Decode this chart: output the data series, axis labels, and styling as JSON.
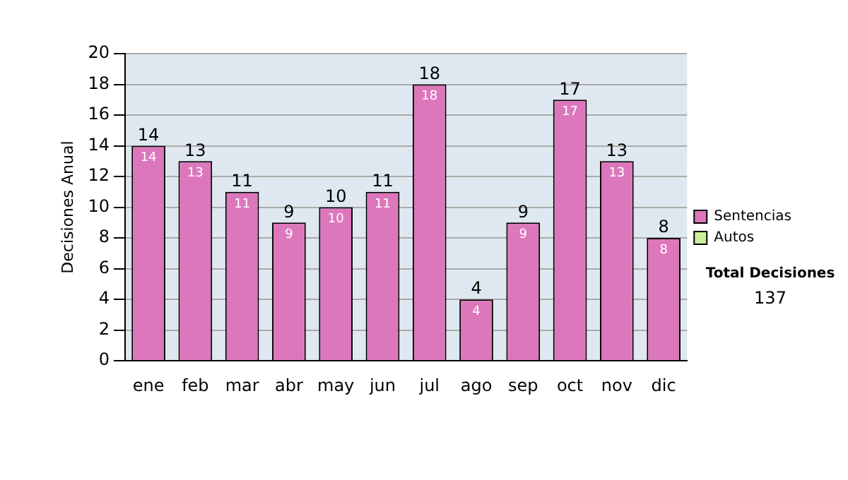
{
  "chart_data": {
    "type": "bar",
    "stacked": true,
    "ylabel": "Decisiones Anual",
    "categories": [
      "ene",
      "feb",
      "mar",
      "abr",
      "may",
      "jun",
      "jul",
      "ago",
      "sep",
      "oct",
      "nov",
      "dic"
    ],
    "series": [
      {
        "name": "Sentencias",
        "color": "#dd77bb",
        "values": [
          14,
          13,
          11,
          9,
          10,
          11,
          18,
          4,
          9,
          17,
          13,
          8
        ],
        "value_labels": [
          "14",
          "13",
          "11",
          "9",
          "10",
          "11",
          "18",
          "4",
          "9",
          "17",
          "13",
          "8"
        ]
      },
      {
        "name": "Autos",
        "color": "#ccee99",
        "values": [
          0,
          0,
          0,
          0,
          0,
          0,
          0,
          0,
          0,
          0,
          0,
          0
        ],
        "value_labels": [
          null,
          null,
          null,
          null,
          null,
          null,
          null,
          null,
          null,
          null,
          null,
          null
        ]
      }
    ],
    "totals": [
      "14",
      "13",
      "11",
      "9",
      "10",
      "11",
      "18",
      "4",
      "9",
      "17",
      "13",
      "8"
    ],
    "ylim": [
      0,
      20
    ],
    "yticks": [
      0,
      2,
      4,
      6,
      8,
      10,
      12,
      14,
      16,
      18,
      20
    ],
    "grid": "y",
    "legend": "right",
    "annotations": [
      "Total Decisiones",
      "137"
    ]
  }
}
